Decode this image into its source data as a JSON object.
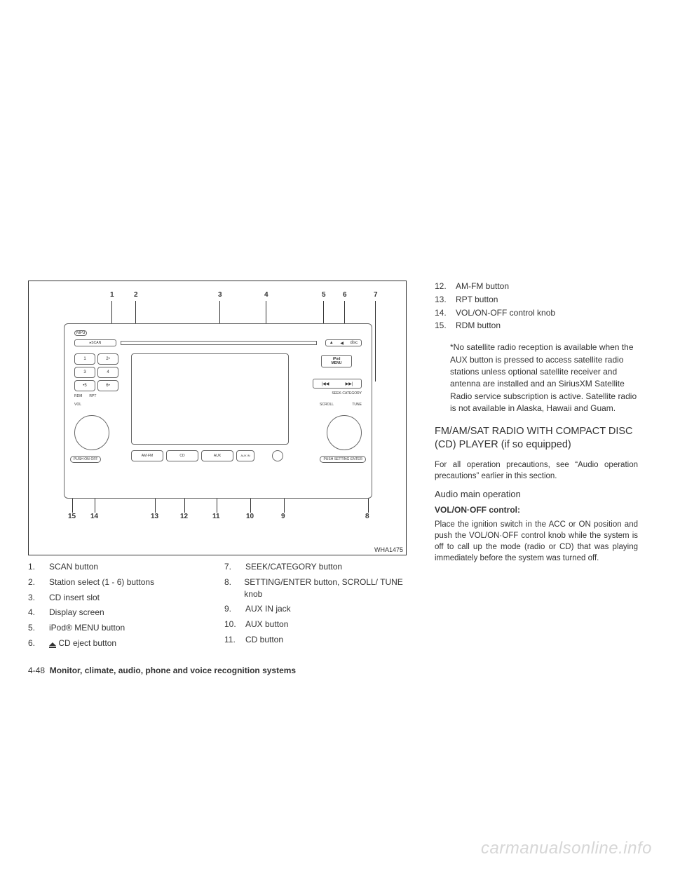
{
  "diagram": {
    "id_label": "WHA1475",
    "callout_numbers_top": [
      "1",
      "2",
      "3",
      "4",
      "5",
      "6",
      "7"
    ],
    "callout_numbers_bottom": [
      "15",
      "14",
      "13",
      "12",
      "11",
      "10",
      "9",
      "8"
    ],
    "labels": {
      "scan": "SCAN",
      "mp3": "MP3",
      "rds": "RDS",
      "eject_sym": "▲",
      "disc": "disc",
      "presets": [
        "1",
        "2",
        "3",
        "4",
        "5",
        "6"
      ],
      "rdm": "RDM",
      "rpt": "RPT",
      "vol": "VOL",
      "push_on_off": "PUSH ON·OFF",
      "push_setting": "PUSH SETTING·ENTER",
      "scroll": "SCROLL",
      "tune": "TUNE",
      "ipod": "iPod",
      "menu": "MENU",
      "seek_prev": "|◀◀",
      "seek_next": "▶▶|",
      "seek_label": "SEEK·CATEGORY",
      "amfm": "AM·FM",
      "cd": "CD",
      "aux": "AUX",
      "aux_in": "AUX\nIN"
    }
  },
  "legend_left": [
    {
      "n": "1.",
      "t": "SCAN button"
    },
    {
      "n": "2.",
      "t": "Station select (1 - 6) buttons"
    },
    {
      "n": "3.",
      "t": "CD insert slot"
    },
    {
      "n": "4.",
      "t": "Display screen"
    },
    {
      "n": "5.",
      "t": "iPod® MENU button"
    },
    {
      "n": "6.",
      "t": "CD eject button",
      "eject": true
    }
  ],
  "legend_mid": [
    {
      "n": "7.",
      "t": "SEEK/CATEGORY button"
    },
    {
      "n": "8.",
      "t": "SETTING/ENTER button, SCROLL/ TUNE knob"
    },
    {
      "n": "9.",
      "t": "AUX IN jack"
    },
    {
      "n": "10.",
      "t": "AUX button"
    },
    {
      "n": "11.",
      "t": "CD button"
    }
  ],
  "legend_right": [
    {
      "n": "12.",
      "t": "AM-FM button"
    },
    {
      "n": "13.",
      "t": "RPT button"
    },
    {
      "n": "14.",
      "t": "VOL/ON-OFF control knob"
    },
    {
      "n": "15.",
      "t": "RDM button"
    }
  ],
  "note": "*No satellite radio reception is available when the AUX button is pressed to access satellite radio stations unless optional satellite receiver and antenna are installed and an SiriusXM Satellite Radio service subscription is active. Satellite radio is not available in Alaska, Hawaii and Guam.",
  "heading": "FM/AM/SAT RADIO WITH COMPACT DISC (CD) PLAYER (if so equipped)",
  "precaution": "For all operation precautions, see “Audio operation precautions” earlier in this section.",
  "sub_heading": "Audio main operation",
  "control_label": "VOL/ON·OFF control:",
  "control_body": "Place the ignition switch in the ACC or ON position and push the VOL/ON·OFF control knob while the system is off to call up the mode (radio or CD) that was playing immediately before the system was turned off.",
  "footer": {
    "page": "4-48",
    "title": "Monitor, climate, audio, phone and voice recognition systems"
  },
  "watermark": "carmanualsonline.info"
}
